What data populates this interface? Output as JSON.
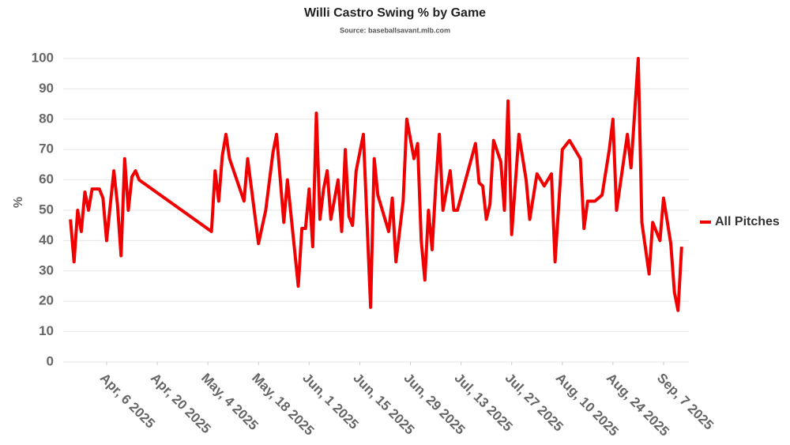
{
  "chart_data": {
    "type": "line",
    "title": "Willi Castro Swing % by Game",
    "subtitle": "Source: baseballsavant.mlb.com",
    "y_label": "%",
    "x": [
      "2025-03-27",
      "2025-03-28",
      "2025-03-29",
      "2025-03-30",
      "2025-03-31",
      "2025-04-01",
      "2025-04-02",
      "2025-04-04",
      "2025-04-05",
      "2025-04-06",
      "2025-04-08",
      "2025-04-09",
      "2025-04-10",
      "2025-04-11",
      "2025-04-12",
      "2025-04-13",
      "2025-04-14",
      "2025-04-15",
      "2025-05-05",
      "2025-05-06",
      "2025-05-07",
      "2025-05-08",
      "2025-05-09",
      "2025-05-10",
      "2025-05-14",
      "2025-05-15",
      "2025-05-18",
      "2025-05-20",
      "2025-05-22",
      "2025-05-23",
      "2025-05-25",
      "2025-05-26",
      "2025-05-29",
      "2025-05-30",
      "2025-05-31",
      "2025-06-01",
      "2025-06-02",
      "2025-06-03",
      "2025-06-04",
      "2025-06-05",
      "2025-06-06",
      "2025-06-07",
      "2025-06-09",
      "2025-06-10",
      "2025-06-11",
      "2025-06-12",
      "2025-06-13",
      "2025-06-14",
      "2025-06-16",
      "2025-06-18",
      "2025-06-19",
      "2025-06-20",
      "2025-06-23",
      "2025-06-24",
      "2025-06-25",
      "2025-06-27",
      "2025-06-28",
      "2025-06-30",
      "2025-07-01",
      "2025-07-02",
      "2025-07-03",
      "2025-07-04",
      "2025-07-05",
      "2025-07-06",
      "2025-07-07",
      "2025-07-08",
      "2025-07-10",
      "2025-07-11",
      "2025-07-12",
      "2025-07-17",
      "2025-07-18",
      "2025-07-19",
      "2025-07-20",
      "2025-07-21",
      "2025-07-22",
      "2025-07-24",
      "2025-07-25",
      "2025-07-26",
      "2025-07-27",
      "2025-07-29",
      "2025-07-31",
      "2025-08-01",
      "2025-08-03",
      "2025-08-05",
      "2025-08-07",
      "2025-08-08",
      "2025-08-10",
      "2025-08-12",
      "2025-08-15",
      "2025-08-16",
      "2025-08-17",
      "2025-08-19",
      "2025-08-21",
      "2025-08-23",
      "2025-08-24",
      "2025-08-25",
      "2025-08-28",
      "2025-08-29",
      "2025-08-31",
      "2025-09-01",
      "2025-09-03",
      "2025-09-04",
      "2025-09-06",
      "2025-09-07",
      "2025-09-09",
      "2025-09-10",
      "2025-09-11",
      "2025-09-12"
    ],
    "series": [
      {
        "name": "All Pitches",
        "color": "#f00000",
        "values": [
          47,
          33,
          50,
          43,
          56,
          50,
          57,
          57,
          54,
          40,
          63,
          52,
          35,
          67,
          50,
          61,
          63,
          60,
          43,
          63,
          53,
          68,
          75,
          67,
          53,
          67,
          39,
          50,
          69,
          75,
          46,
          60,
          25,
          44,
          44,
          57,
          38,
          82,
          47,
          57,
          63,
          47,
          60,
          43,
          70,
          48,
          45,
          63,
          75,
          18,
          67,
          55,
          43,
          54,
          33,
          53,
          80,
          67,
          72,
          40,
          27,
          50,
          37,
          58,
          75,
          50,
          63,
          50,
          50,
          72,
          59,
          58,
          47,
          52,
          73,
          66,
          50,
          86,
          42,
          75,
          60,
          47,
          62,
          58,
          62,
          33,
          70,
          73,
          67,
          44,
          53,
          53,
          55,
          70,
          80,
          50,
          75,
          64,
          100,
          46,
          29,
          46,
          40,
          54,
          39,
          23,
          17,
          38
        ]
      }
    ],
    "xlim": [
      "2025-03-25",
      "2025-09-14"
    ],
    "xticks": [
      {
        "value": "2025-04-06",
        "label": "Apr, 6 2025"
      },
      {
        "value": "2025-04-20",
        "label": "Apr, 20 2025"
      },
      {
        "value": "2025-05-04",
        "label": "May, 4 2025"
      },
      {
        "value": "2025-05-18",
        "label": "May, 18 2025"
      },
      {
        "value": "2025-06-01",
        "label": "Jun, 1 2025"
      },
      {
        "value": "2025-06-15",
        "label": "Jun, 15 2025"
      },
      {
        "value": "2025-06-29",
        "label": "Jun, 29 2025"
      },
      {
        "value": "2025-07-13",
        "label": "Jul, 13 2025"
      },
      {
        "value": "2025-07-27",
        "label": "Jul, 27 2025"
      },
      {
        "value": "2025-08-10",
        "label": "Aug, 10 2025"
      },
      {
        "value": "2025-08-24",
        "label": "Aug, 24 2025"
      },
      {
        "value": "2025-09-07",
        "label": "Sep, 7 2025"
      }
    ],
    "ylim": [
      0,
      100
    ],
    "yticks": [
      0,
      10,
      20,
      30,
      40,
      50,
      60,
      70,
      80,
      90,
      100
    ],
    "grid": true,
    "legend": "right"
  }
}
